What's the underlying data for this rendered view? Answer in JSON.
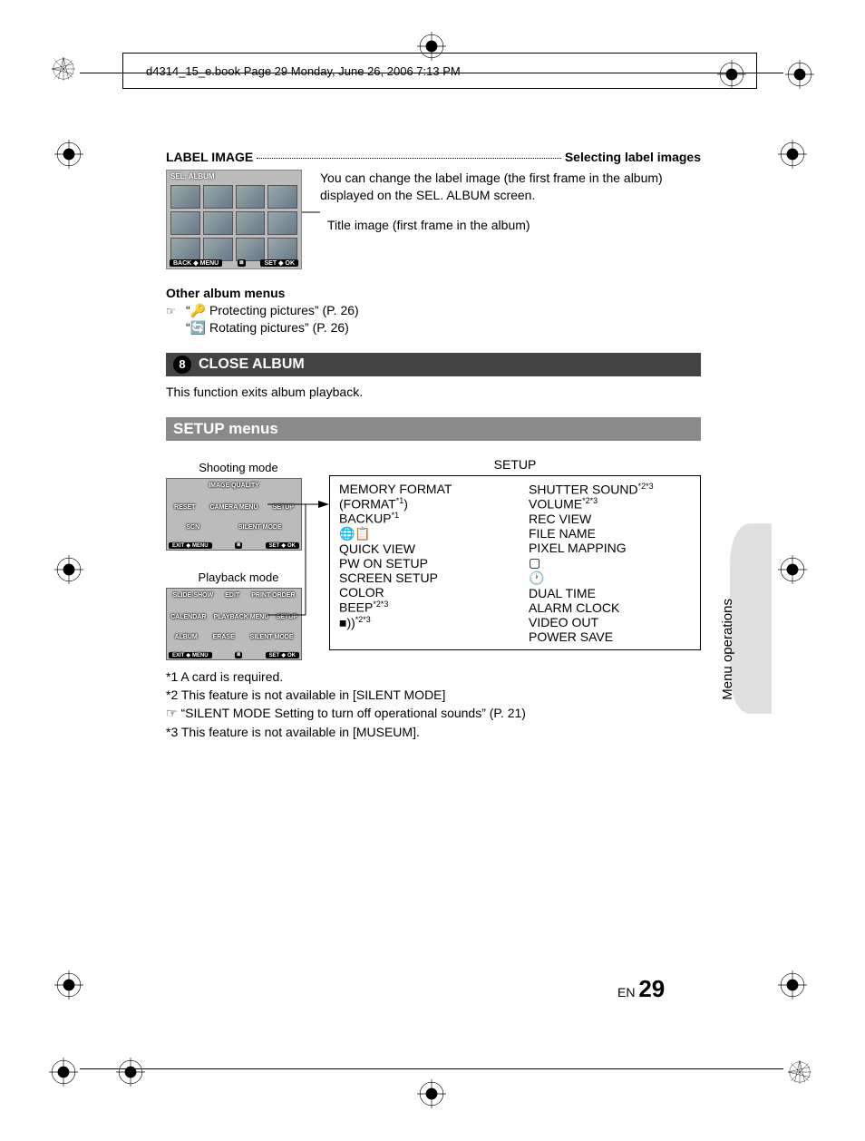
{
  "crop_header": "d4314_15_e.book  Page 29  Monday, June 26, 2006  7:13 PM",
  "side_label": "Menu operations",
  "label_image": {
    "heading_left": "LABEL IMAGE",
    "heading_right": "Selecting label images",
    "body1": "You can change the label image (the first frame in the album) displayed on the SEL. ALBUM screen.",
    "callout": "Title image (first frame in the album)",
    "album_header": "SEL. ALBUM",
    "album_back": "BACK",
    "album_menu": "MENU",
    "album_set": "SET",
    "album_ok": "OK",
    "other_heading": "Other album menus",
    "ref1": "“🔑  Protecting pictures” (P. 26)",
    "ref2": "“🔄  Rotating pictures” (P. 26)"
  },
  "close_album": {
    "num": "8",
    "title": "CLOSE ALBUM",
    "body": "This function exits album playback."
  },
  "setup": {
    "title": "SETUP menus",
    "shooting_label": "Shooting mode",
    "playback_label": "Playback mode",
    "shooting_items_r1": [
      "IMAGE QUALITY"
    ],
    "shooting_items_r2": [
      "RESET",
      "CAMERA MENU",
      "SETUP"
    ],
    "shooting_items_r3": [
      "SCN",
      "SILENT MODE"
    ],
    "playback_items_r1": [
      "SLIDE-SHOW",
      "EDIT",
      "PRINT ORDER"
    ],
    "playback_items_r2": [
      "CALENDAR",
      "PLAYBACK MENU",
      "SETUP"
    ],
    "playback_items_r3": [
      "ALBUM",
      "ERASE",
      "SILENT MODE"
    ],
    "panel_exit": "EXIT",
    "panel_menu": "MENU",
    "panel_set": "SET",
    "panel_ok": "OK",
    "setup_heading": "SETUP",
    "col1": [
      {
        "t": "MEMORY FORMAT",
        "s": ""
      },
      {
        "t": "(FORMAT",
        "s": "*1",
        "tail": ")"
      },
      {
        "t": "BACKUP",
        "s": "*1"
      },
      {
        "t": "🌐📋",
        "s": ""
      },
      {
        "t": "QUICK VIEW",
        "s": ""
      },
      {
        "t": "PW ON SETUP",
        "s": ""
      },
      {
        "t": "SCREEN SETUP",
        "s": ""
      },
      {
        "t": "COLOR",
        "s": ""
      },
      {
        "t": "BEEP",
        "s": "*2*3"
      },
      {
        "t": "■))",
        "s": "*2*3"
      }
    ],
    "col2": [
      {
        "t": "SHUTTER SOUND",
        "s": "*2*3"
      },
      {
        "t": "VOLUME",
        "s": "*2*3"
      },
      {
        "t": "REC VIEW",
        "s": ""
      },
      {
        "t": "FILE NAME",
        "s": ""
      },
      {
        "t": "PIXEL MAPPING",
        "s": ""
      },
      {
        "t": "▢",
        "s": ""
      },
      {
        "t": "🕐",
        "s": ""
      },
      {
        "t": "DUAL TIME",
        "s": ""
      },
      {
        "t": "ALARM CLOCK",
        "s": ""
      },
      {
        "t": "VIDEO OUT",
        "s": ""
      },
      {
        "t": "POWER SAVE",
        "s": ""
      }
    ],
    "footnotes": [
      "*1 A card is required.",
      "*2 This feature is not available in [SILENT MODE]",
      "☞ “SILENT MODE Setting to turn off operational sounds” (P. 21)",
      "*3 This feature is not available in [MUSEUM]."
    ]
  },
  "page": {
    "lang": "EN",
    "num": "29"
  }
}
